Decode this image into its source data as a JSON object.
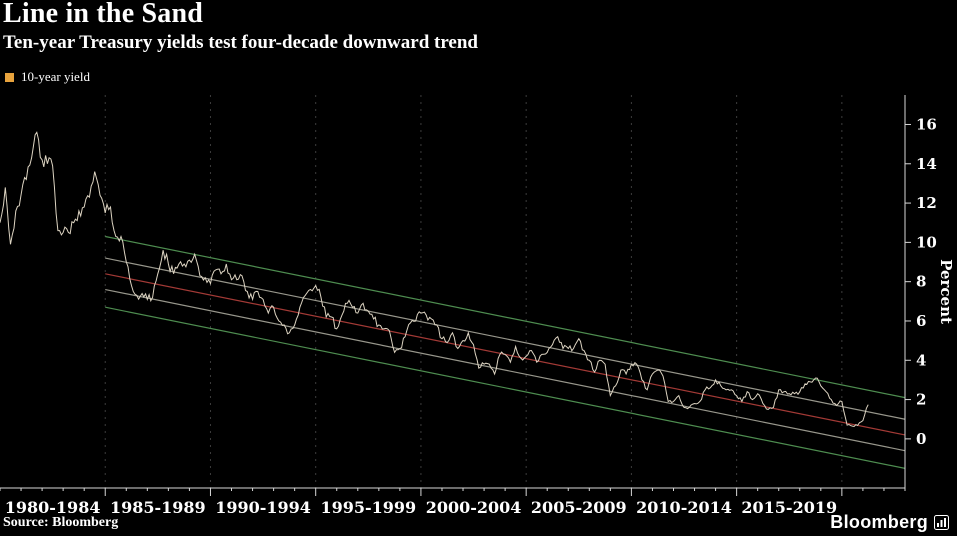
{
  "header": {
    "title": "Line in the Sand",
    "subtitle": "Ten-year Treasury yields test four-decade downward trend"
  },
  "legend": {
    "label": "10-year yield",
    "swatch_color": "#e8a33d"
  },
  "footer": {
    "source": "Source: Bloomberg",
    "brand": "Bloomberg"
  },
  "colors": {
    "background": "#000000",
    "text": "#ffffff",
    "axis": "#d8d8d8",
    "gridline": "#3d3d3d",
    "series": "#ddd4c2",
    "channel_green": "#4e8d50",
    "channel_red": "#a33a36",
    "channel_gray": "#98978c"
  },
  "chart_data": {
    "type": "line",
    "title": "Line in the Sand",
    "subtitle": "Ten-year Treasury yields test four-decade downward trend",
    "xlabel": "",
    "ylabel": "Percent",
    "ylim": [
      -2.5,
      17.5
    ],
    "yticks": [
      0,
      2,
      4,
      6,
      8,
      10,
      12,
      14,
      16
    ],
    "x_range": [
      1980,
      2023
    ],
    "grid": "vertical-dashed",
    "legend_position": "top-left",
    "axis_side": "right",
    "gridline_years": [
      1985,
      1990,
      1995,
      2000,
      2005,
      2010,
      2015,
      2020
    ],
    "x_categories": [
      {
        "label": "1980-1984",
        "center": 1982.5
      },
      {
        "label": "1985-1989",
        "center": 1987.5
      },
      {
        "label": "1990-1994",
        "center": 1992.5
      },
      {
        "label": "1995-1999",
        "center": 1997.5
      },
      {
        "label": "2000-2004",
        "center": 2002.5
      },
      {
        "label": "2005-2009",
        "center": 2007.5
      },
      {
        "label": "2010-2014",
        "center": 2012.5
      },
      {
        "label": "2015-2019",
        "center": 2017.5
      }
    ],
    "series": [
      {
        "name": "10-year yield",
        "color": "#ddd4c2",
        "x_start": 1980,
        "x_step": 0.25,
        "values": [
          11.0,
          12.8,
          9.9,
          11.6,
          12.4,
          13.2,
          14.3,
          15.6,
          14.2,
          14.0,
          13.9,
          10.6,
          10.5,
          10.5,
          11.0,
          11.6,
          11.8,
          12.3,
          13.6,
          12.4,
          11.5,
          11.8,
          10.3,
          10.3,
          9.0,
          7.8,
          7.3,
          7.4,
          7.1,
          7.2,
          8.4,
          9.6,
          8.9,
          8.4,
          8.9,
          8.9,
          9.1,
          9.4,
          8.3,
          8.2,
          7.9,
          8.6,
          8.4,
          8.9,
          8.1,
          8.1,
          8.3,
          7.5,
          7.1,
          7.5,
          7.1,
          6.4,
          6.7,
          6.0,
          5.8,
          5.4,
          5.8,
          6.7,
          7.3,
          7.6,
          7.8,
          7.2,
          6.2,
          6.2,
          5.6,
          6.3,
          6.9,
          6.7,
          6.4,
          6.9,
          6.5,
          6.1,
          5.8,
          5.6,
          5.5,
          4.4,
          4.6,
          5.2,
          5.9,
          6.0,
          6.4,
          6.3,
          6.1,
          5.8,
          5.1,
          4.9,
          5.4,
          4.6,
          5.0,
          5.4,
          4.8,
          3.6,
          3.8,
          3.8,
          3.3,
          4.3,
          4.3,
          3.9,
          4.7,
          4.1,
          4.2,
          4.5,
          3.9,
          4.3,
          4.4,
          4.8,
          5.2,
          4.6,
          4.6,
          4.6,
          5.1,
          4.5,
          4.0,
          3.4,
          4.0,
          3.8,
          2.2,
          2.7,
          3.5,
          3.3,
          3.8,
          3.8,
          3.0,
          2.5,
          3.3,
          3.5,
          3.2,
          1.9,
          1.9,
          2.2,
          1.6,
          1.6,
          1.8,
          1.9,
          2.5,
          2.6,
          3.0,
          2.7,
          2.5,
          2.5,
          2.2,
          1.9,
          2.4,
          2.0,
          2.3,
          1.8,
          1.5,
          1.6,
          2.5,
          2.4,
          2.3,
          2.3,
          2.4,
          2.8,
          2.9,
          3.1,
          2.7,
          2.4,
          2.0,
          1.7,
          1.9,
          0.7,
          0.65,
          0.68,
          0.93,
          1.74
        ]
      }
    ],
    "trend_channel": [
      {
        "name": "upper-outer",
        "color": "#4e8d50",
        "x": [
          1985,
          2023
        ],
        "y": [
          10.3,
          2.1
        ]
      },
      {
        "name": "upper-inner",
        "color": "#98978c",
        "x": [
          1985,
          2023
        ],
        "y": [
          9.2,
          1.0
        ]
      },
      {
        "name": "midline",
        "color": "#a33a36",
        "x": [
          1985,
          2023
        ],
        "y": [
          8.4,
          0.2
        ]
      },
      {
        "name": "lower-inner",
        "color": "#98978c",
        "x": [
          1985,
          2023
        ],
        "y": [
          7.6,
          -0.6
        ]
      },
      {
        "name": "lower-outer",
        "color": "#4e8d50",
        "x": [
          1985,
          2023
        ],
        "y": [
          6.7,
          -1.5
        ]
      }
    ]
  }
}
